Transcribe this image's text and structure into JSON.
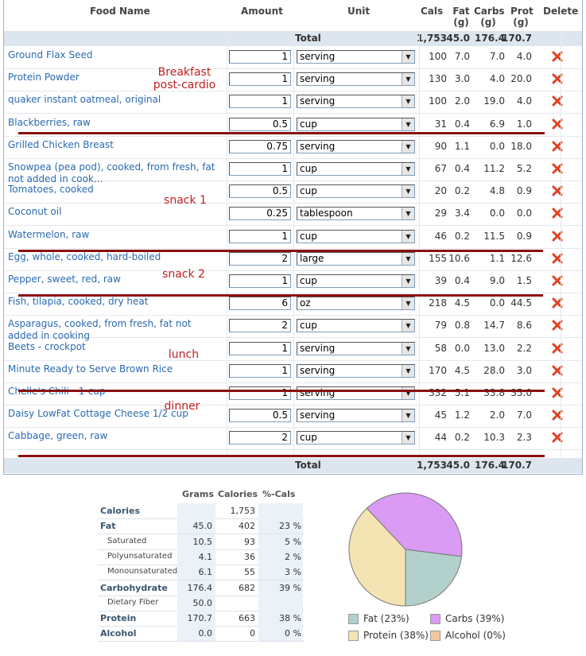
{
  "headers": {
    "food_name": "Food Name",
    "amount": "Amount",
    "unit": "Unit",
    "cals": "Cals",
    "fat": "Fat\n(g)",
    "carbs": "Carbs\n(g)",
    "prot": "Prot\n(g)",
    "delete": "Delete"
  },
  "totals": {
    "label": "Total",
    "cals": "1,753",
    "fat": "45.0",
    "carbs": "176.4",
    "prot": "170.7"
  },
  "foods": [
    {
      "name": "Ground Flax Seed",
      "amount": "1",
      "unit": "serving",
      "cals": "100",
      "fat": "7.0",
      "carbs": "7.0",
      "prot": "4.0"
    },
    {
      "name": "Protein Powder",
      "amount": "1",
      "unit": "serving",
      "cals": "130",
      "fat": "3.0",
      "carbs": "4.0",
      "prot": "20.0"
    },
    {
      "name": "quaker instant oatmeal, original",
      "amount": "1",
      "unit": "serving",
      "cals": "100",
      "fat": "2.0",
      "carbs": "19.0",
      "prot": "4.0"
    },
    {
      "name": "Blackberries, raw",
      "amount": "0.5",
      "unit": "cup",
      "cals": "31",
      "fat": "0.4",
      "carbs": "6.9",
      "prot": "1.0"
    },
    {
      "name": "Grilled Chicken Breast",
      "amount": "0.75",
      "unit": "serving",
      "cals": "90",
      "fat": "1.1",
      "carbs": "0.0",
      "prot": "18.0"
    },
    {
      "name": "Snowpea (pea pod), cooked, from fresh, fat not added in cook...",
      "amount": "1",
      "unit": "cup",
      "cals": "67",
      "fat": "0.4",
      "carbs": "11.2",
      "prot": "5.2"
    },
    {
      "name": "Tomatoes, cooked",
      "amount": "0.5",
      "unit": "cup",
      "cals": "20",
      "fat": "0.2",
      "carbs": "4.8",
      "prot": "0.9"
    },
    {
      "name": "Coconut oil",
      "amount": "0.25",
      "unit": "tablespoon",
      "cals": "29",
      "fat": "3.4",
      "carbs": "0.0",
      "prot": "0.0"
    },
    {
      "name": "Watermelon, raw",
      "amount": "1",
      "unit": "cup",
      "cals": "46",
      "fat": "0.2",
      "carbs": "11.5",
      "prot": "0.9"
    },
    {
      "name": "Egg, whole, cooked, hard-boiled",
      "amount": "2",
      "unit": "large",
      "cals": "155",
      "fat": "10.6",
      "carbs": "1.1",
      "prot": "12.6"
    },
    {
      "name": "Pepper, sweet, red, raw",
      "amount": "1",
      "unit": "cup",
      "cals": "39",
      "fat": "0.4",
      "carbs": "9.0",
      "prot": "1.5"
    },
    {
      "name": "Fish, tilapia, cooked, dry heat",
      "amount": "6",
      "unit": "oz",
      "cals": "218",
      "fat": "4.5",
      "carbs": "0.0",
      "prot": "44.5"
    },
    {
      "name": "Asparagus, cooked, from fresh, fat not added in cooking",
      "amount": "2",
      "unit": "cup",
      "cals": "79",
      "fat": "0.8",
      "carbs": "14.7",
      "prot": "8.6"
    },
    {
      "name": "Beets - crockpot",
      "amount": "1",
      "unit": "serving",
      "cals": "58",
      "fat": "0.0",
      "carbs": "13.0",
      "prot": "2.2"
    },
    {
      "name": "Minute Ready to Serve Brown Rice",
      "amount": "1",
      "unit": "serving",
      "cals": "170",
      "fat": "4.5",
      "carbs": "28.0",
      "prot": "3.0"
    },
    {
      "name": "Chelle's Chili - 1-cup",
      "amount": "1",
      "unit": "serving",
      "cals": "332",
      "fat": "5.1",
      "carbs": "33.8",
      "prot": "35.0"
    },
    {
      "name": "Daisy LowFat Cottage Cheese 1/2 cup",
      "amount": "0.5",
      "unit": "serving",
      "cals": "45",
      "fat": "1.2",
      "carbs": "2.0",
      "prot": "7.0"
    },
    {
      "name": "Cabbage, green, raw",
      "amount": "2",
      "unit": "cup",
      "cals": "44",
      "fat": "0.2",
      "carbs": "10.3",
      "prot": "2.3"
    }
  ],
  "annotations": {
    "breakfast": "Breakfast\npost-cardio",
    "snack1": "snack 1",
    "snack2": "snack 2",
    "lunch": "lunch",
    "dinner": "dinner"
  },
  "nutrition": {
    "headers": {
      "grams": "Grams",
      "calories": "Calories",
      "pct": "%-Cals"
    },
    "rows": [
      {
        "label": "Calories",
        "grams": "",
        "calories": "1,753",
        "pct": "",
        "kind": "main"
      },
      {
        "label": "Fat",
        "grams": "45.0",
        "calories": "402",
        "pct": "23 %",
        "kind": "main"
      },
      {
        "label": "Saturated",
        "grams": "10.5",
        "calories": "93",
        "pct": "5 %",
        "kind": "sub"
      },
      {
        "label": "Polyunsaturated",
        "grams": "4.1",
        "calories": "36",
        "pct": "2 %",
        "kind": "sub"
      },
      {
        "label": "Monounsaturated",
        "grams": "6.1",
        "calories": "55",
        "pct": "3 %",
        "kind": "sub"
      },
      {
        "label": "Carbohydrate",
        "grams": "176.4",
        "calories": "682",
        "pct": "39 %",
        "kind": "main"
      },
      {
        "label": "Dietary Fiber",
        "grams": "50.0",
        "calories": "",
        "pct": "",
        "kind": "sub"
      },
      {
        "label": "Protein",
        "grams": "170.7",
        "calories": "663",
        "pct": "38 %",
        "kind": "main"
      },
      {
        "label": "Alcohol",
        "grams": "0.0",
        "calories": "0",
        "pct": "0 %",
        "kind": "main"
      }
    ]
  },
  "chart_data": {
    "type": "pie",
    "title": "",
    "legend_position": "bottom",
    "slices": [
      {
        "label": "Fat (23%)",
        "value": 23,
        "color": "#b3d1cc"
      },
      {
        "label": "Carbs (39%)",
        "value": 39,
        "color": "#d99bf3"
      },
      {
        "label": "Protein (38%)",
        "value": 38,
        "color": "#f4e4b3"
      },
      {
        "label": "Alcohol (0%)",
        "value": 0,
        "color": "#f0c9a0"
      }
    ]
  },
  "colors": {
    "link": "#2a6ab0",
    "annotation": "#c02020",
    "separator": "#8b1010",
    "total_bg": "#dde6ef",
    "delete": "#e04020"
  },
  "icons": {
    "delete": "red-x-icon",
    "dropdown": "dropdown-arrow-icon"
  }
}
